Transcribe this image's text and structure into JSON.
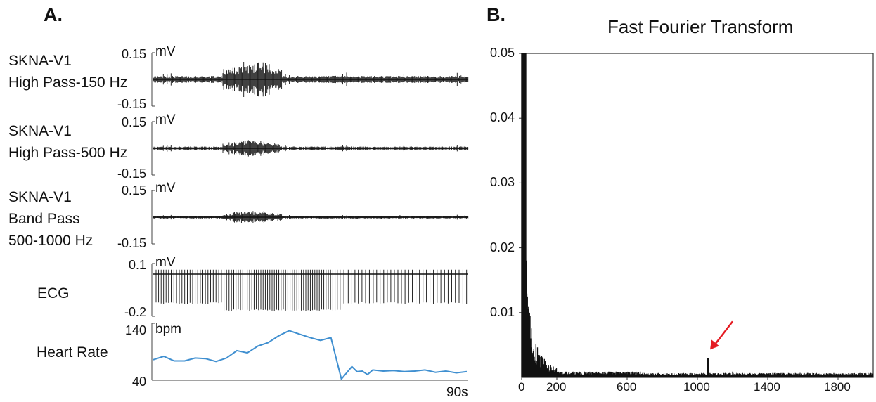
{
  "chart_data": [
    {
      "panel": "A.",
      "type": "line",
      "subplots": [
        {
          "label_lines": [
            "SKNA-V1",
            "High Pass-150 Hz"
          ],
          "unit": "mV",
          "ymax": "0.15",
          "ymin": "-0.15",
          "ylim": [
            -0.15,
            0.15
          ],
          "burst_amplitude": 0.12,
          "baseline_amplitude": 0.02
        },
        {
          "label_lines": [
            "SKNA-V1",
            "High Pass-500 Hz"
          ],
          "unit": "mV",
          "ymax": "0.15",
          "ymin": "-0.15",
          "ylim": [
            -0.15,
            0.15
          ],
          "burst_amplitude": 0.05,
          "baseline_amplitude": 0.01
        },
        {
          "label_lines": [
            "SKNA-V1",
            "Band Pass",
            "500-1000 Hz"
          ],
          "unit": "mV",
          "ymax": "0.15",
          "ymin": "-0.15",
          "ylim": [
            -0.15,
            0.15
          ],
          "burst_amplitude": 0.04,
          "baseline_amplitude": 0.008
        },
        {
          "label_lines": [
            "ECG"
          ],
          "unit": "mV",
          "ymax": "0.1",
          "ymin": "-0.2",
          "ylim": [
            -0.2,
            0.1
          ]
        },
        {
          "label_lines": [
            "Heart Rate"
          ],
          "unit": "bpm",
          "ymax": "140",
          "ymin": "40",
          "ylim": [
            40,
            140
          ],
          "x": [
            0,
            3,
            6,
            9,
            12,
            15,
            18,
            21,
            24,
            27,
            30,
            33,
            36,
            39,
            42,
            45,
            48,
            51,
            54,
            57,
            58.5,
            60,
            61.5,
            63,
            66,
            69,
            72,
            75,
            78,
            81,
            84,
            87,
            90
          ],
          "values": [
            76,
            82,
            74,
            74,
            79,
            78,
            73,
            79,
            92,
            88,
            100,
            106,
            118,
            127,
            121,
            115,
            110,
            115,
            42,
            64,
            55,
            56,
            50,
            58,
            56,
            57,
            55,
            56,
            58,
            54,
            56,
            53,
            55
          ]
        }
      ],
      "x_end_label": "90s",
      "xlim": [
        0,
        90
      ],
      "burst_x": [
        20,
        37
      ],
      "colors": {
        "trace": "#111111",
        "heart_rate": "#3f8fd0"
      }
    },
    {
      "panel": "B.",
      "type": "line",
      "title": "Fast Fourier Transform",
      "xlim": [
        0,
        2000
      ],
      "ylim": [
        0,
        0.05
      ],
      "xticks": [
        0,
        200,
        600,
        1000,
        1400,
        1800
      ],
      "yticks": [
        0.01,
        0.02,
        0.03,
        0.04,
        0.05
      ],
      "ytick_labels": [
        "0.01",
        "0.02",
        "0.03",
        "0.04",
        "0.05"
      ],
      "peak": {
        "x": 1060,
        "y": 0.003
      },
      "annotation": {
        "type": "arrow",
        "color": "#e51c23"
      },
      "colors": {
        "trace": "#111111",
        "arrow": "#e51c23"
      }
    }
  ]
}
